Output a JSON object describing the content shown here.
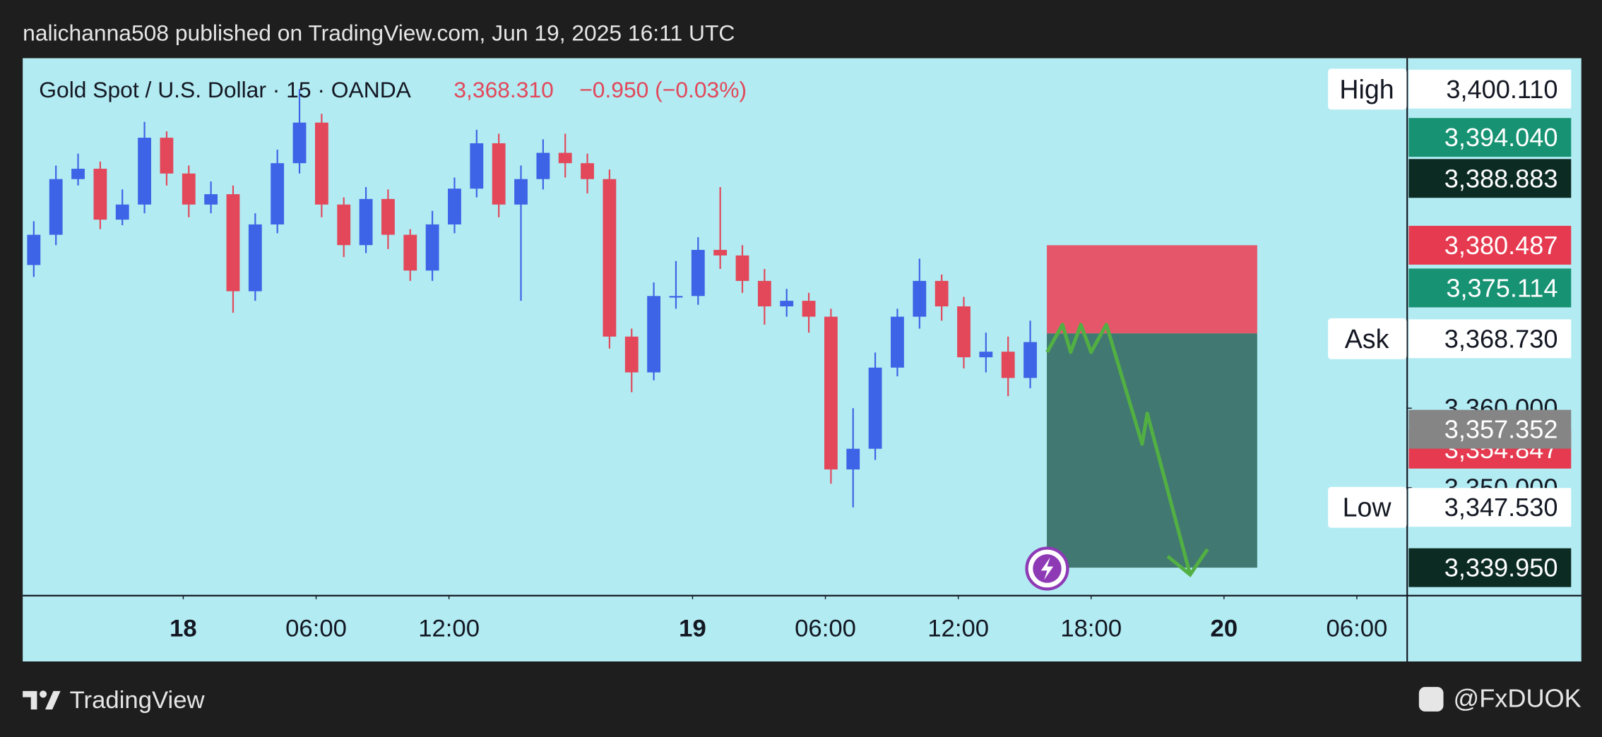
{
  "header": {
    "published": "nalichanna508 published on TradingView.com, Jun 19, 2025 16:11 UTC"
  },
  "footer": {
    "brand": "TradingView",
    "author": "@FxDUOK"
  },
  "chart_data": {
    "type": "candlestick",
    "symbol": "Gold Spot / U.S. Dollar · 15 · OANDA",
    "last_price": "3,368.310",
    "change": "−0.950 (−0.03%)",
    "up_color": "#3d63e6",
    "down_color": "#e2485a",
    "xlim": [
      0,
      250
    ],
    "xticks": [
      {
        "value": 29,
        "label": "18"
      },
      {
        "value": 53,
        "label": "06:00"
      },
      {
        "value": 77,
        "label": "12:00"
      },
      {
        "value": 121,
        "label": "19"
      },
      {
        "value": 145,
        "label": "06:00"
      },
      {
        "value": 169,
        "label": "12:00"
      },
      {
        "value": 193,
        "label": "18:00"
      },
      {
        "value": 217,
        "label": "20"
      },
      {
        "value": 241,
        "label": "06:00"
      }
    ],
    "ylim": [
      3336.5,
      3404.0
    ],
    "yticks": [
      {
        "value": 3360,
        "label": "3,360.000"
      },
      {
        "value": 3350,
        "label": "3,350.000"
      }
    ],
    "x": [
      2,
      6,
      10,
      14,
      18,
      22,
      26,
      30,
      34,
      38,
      42,
      46,
      50,
      54,
      58,
      62,
      66,
      70,
      74,
      78,
      82,
      86,
      90,
      94,
      98,
      102,
      106,
      110,
      114,
      118,
      122,
      126,
      130,
      134,
      138,
      142,
      146,
      150,
      154,
      158,
      162,
      166,
      170,
      174,
      178,
      182
    ],
    "open": [
      3378.0,
      3381.8,
      3388.8,
      3390.1,
      3383.7,
      3385.6,
      3394.0,
      3389.5,
      3385.6,
      3386.9,
      3374.7,
      3383.1,
      3390.8,
      3395.9,
      3385.6,
      3380.5,
      3386.3,
      3381.8,
      3377.3,
      3383.1,
      3387.6,
      3393.3,
      3385.6,
      3388.8,
      3392.1,
      3390.8,
      3388.8,
      3369.0,
      3364.5,
      3374.1,
      3374.1,
      3379.9,
      3379.2,
      3376.0,
      3372.8,
      3373.5,
      3371.5,
      3352.3,
      3354.9,
      3365.1,
      3371.5,
      3376.0,
      3372.8,
      3366.4,
      3367.1,
      3363.8
    ],
    "high": [
      3383.5,
      3390.5,
      3392.0,
      3391.0,
      3387.5,
      3396.0,
      3394.8,
      3390.5,
      3388.5,
      3388.0,
      3384.5,
      3392.5,
      3400.11,
      3397.0,
      3386.5,
      3387.8,
      3387.5,
      3382.5,
      3384.8,
      3389.0,
      3395.0,
      3394.5,
      3390.5,
      3393.8,
      3394.5,
      3392.0,
      3390.0,
      3370.0,
      3375.8,
      3378.5,
      3381.5,
      3387.8,
      3380.5,
      3377.5,
      3375.0,
      3374.5,
      3372.5,
      3360.0,
      3367.0,
      3372.5,
      3378.8,
      3376.8,
      3374.0,
      3369.5,
      3369.0,
      3371.0
    ],
    "low": [
      3376.5,
      3380.5,
      3388.0,
      3382.5,
      3383.0,
      3384.5,
      3388.0,
      3384.0,
      3384.5,
      3372.0,
      3373.5,
      3382.0,
      3389.5,
      3384.0,
      3379.0,
      3379.5,
      3380.0,
      3376.0,
      3376.0,
      3382.0,
      3386.5,
      3384.0,
      3373.5,
      3387.5,
      3389.0,
      3387.0,
      3367.5,
      3362.0,
      3363.5,
      3372.5,
      3373.0,
      3377.5,
      3374.5,
      3370.5,
      3371.5,
      3369.5,
      3350.5,
      3347.53,
      3353.5,
      3364.0,
      3370.0,
      3371.0,
      3365.0,
      3364.5,
      3361.5,
      3362.5
    ],
    "close": [
      3381.8,
      3388.8,
      3390.1,
      3383.7,
      3385.6,
      3394.0,
      3389.5,
      3385.6,
      3386.9,
      3374.7,
      3383.1,
      3390.8,
      3395.9,
      3385.6,
      3380.5,
      3386.3,
      3381.8,
      3377.3,
      3383.1,
      3387.6,
      3393.3,
      3385.6,
      3388.8,
      3392.1,
      3390.8,
      3388.8,
      3369.0,
      3364.5,
      3374.1,
      3374.1,
      3379.9,
      3379.2,
      3376.0,
      3372.8,
      3373.5,
      3371.5,
      3352.3,
      3354.9,
      3365.1,
      3371.5,
      3376.0,
      3372.8,
      3366.4,
      3367.1,
      3363.8,
      3368.31
    ],
    "position": {
      "x": [
        185,
        223
      ],
      "stop": 3380.487,
      "entry": 3369.4,
      "target": 3339.95,
      "stop_color": "#e5566a",
      "target_color": "#417872"
    },
    "price_labels": [
      {
        "value": 3400.11,
        "label": "3,400.110",
        "caption": "High",
        "color": "#ffffff",
        "text_color": "#131722"
      },
      {
        "value": 3394.04,
        "label": "3,394.040",
        "color": "#179272",
        "text_color": "#ffffff"
      },
      {
        "value": 3388.883,
        "label": "3,388.883",
        "color": "#0c2b22",
        "text_color": "#ffffff"
      },
      {
        "value": 3380.487,
        "label": "3,380.487",
        "color": "#e53a4f",
        "text_color": "#ffffff"
      },
      {
        "value": 3375.114,
        "label": "3,375.114",
        "color": "#179272",
        "text_color": "#ffffff"
      },
      {
        "value": 3368.73,
        "label": "3,368.730",
        "caption": "Ask",
        "color": "#ffffff",
        "text_color": "#131722"
      },
      {
        "value": 3354.847,
        "label": "3,354.847",
        "color": "#e53a4f",
        "text_color": "#ffffff"
      },
      {
        "value": 3357.352,
        "label": "3,357.352",
        "color": "#858585",
        "text_color": "#ffffff"
      },
      {
        "value": 3347.53,
        "label": "3,347.530",
        "caption": "Low",
        "color": "#ffffff",
        "text_color": "#131722"
      },
      {
        "value": 3339.95,
        "label": "3,339.950",
        "color": "#0c2b22",
        "text_color": "#ffffff"
      }
    ]
  }
}
